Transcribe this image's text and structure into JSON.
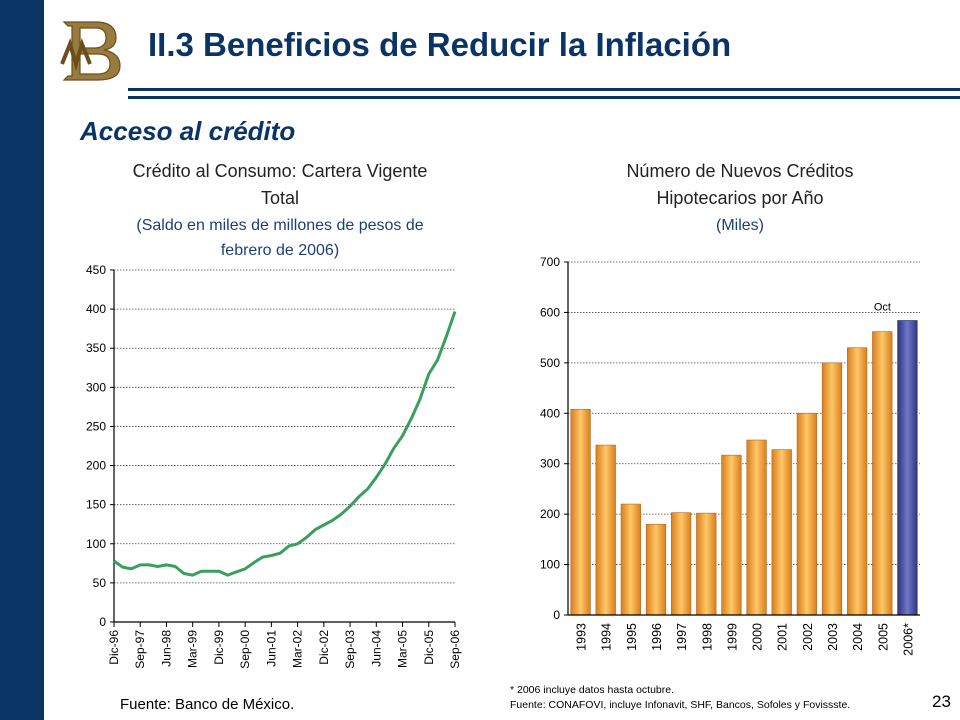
{
  "header": {
    "title": "II.3 Beneficios de Reducir la Inflación",
    "subtitle": "Acceso al crédito",
    "page_number": "23",
    "logo_icon": "banxico-bm-monogram-icon"
  },
  "colors": {
    "navy": "#0b3466",
    "line": "#3a9e5c",
    "bar": "#f2a23a",
    "bar_highlight": "#3d4a9c"
  },
  "left_chart": {
    "title_line1": "Crédito al Consumo: Cartera Vigente",
    "title_line2": "Total",
    "subtitle_line1": "(Saldo en miles de millones de pesos de",
    "subtitle_line2": "febrero de 2006)",
    "source": "Fuente: Banco de México."
  },
  "right_chart": {
    "title_line1": "Número de Nuevos Créditos",
    "title_line2": "Hipotecarios por Año",
    "subtitle": "(Miles)",
    "annotation": "Oct",
    "note1": "* 2006 incluye datos hasta octubre.",
    "note2": "Fuente: CONAFOVI,  incluye Infonavit, SHF, Bancos, Sofoles y Fovissste."
  },
  "chart_data": [
    {
      "type": "line",
      "title": "Crédito al Consumo: Cartera Vigente Total",
      "subtitle": "(Saldo en miles de millones de pesos de febrero de 2006)",
      "ylim": [
        0,
        450
      ],
      "yticks": [
        0,
        50,
        100,
        150,
        200,
        250,
        300,
        350,
        400,
        450
      ],
      "xtick_labels": [
        "Dic-96",
        "Sep-97",
        "Jun-98",
        "Mar-99",
        "Dic-99",
        "Sep-00",
        "Jun-01",
        "Mar-02",
        "Dic-02",
        "Sep-03",
        "Jun-04",
        "Mar-05",
        "Dic-05",
        "Sep-06"
      ],
      "grid": true,
      "x": [
        0,
        3,
        6,
        9,
        12,
        15,
        18,
        21,
        24,
        27,
        30,
        33,
        36,
        39,
        42,
        45,
        48,
        51,
        54,
        57,
        60,
        63,
        66,
        69,
        72,
        75,
        78,
        81,
        84,
        87,
        90,
        93,
        96,
        99,
        102,
        105,
        108,
        111,
        114,
        117
      ],
      "values": [
        78,
        70,
        68,
        73,
        73,
        71,
        73,
        71,
        62,
        60,
        65,
        65,
        65,
        60,
        64,
        68,
        76,
        83,
        85,
        88,
        97,
        100,
        108,
        118,
        124,
        130,
        138,
        148,
        160,
        170,
        185,
        202,
        222,
        238,
        260,
        285,
        317,
        335,
        365,
        397
      ]
    },
    {
      "type": "bar",
      "title": "Número de Nuevos Créditos Hipotecarios por Año",
      "subtitle": "(Miles)",
      "categories": [
        "1993",
        "1994",
        "1995",
        "1996",
        "1997",
        "1998",
        "1999",
        "2000",
        "2001",
        "2002",
        "2003",
        "2004",
        "2005",
        "2006*"
      ],
      "values": [
        408,
        337,
        220,
        180,
        203,
        202,
        317,
        347,
        328,
        400,
        500,
        530,
        562,
        584
      ],
      "ylim": [
        0,
        700
      ],
      "yticks": [
        0,
        100,
        200,
        300,
        400,
        500,
        600,
        700
      ],
      "grid": true,
      "highlight_index": 13,
      "annotations": [
        "Oct"
      ]
    }
  ]
}
